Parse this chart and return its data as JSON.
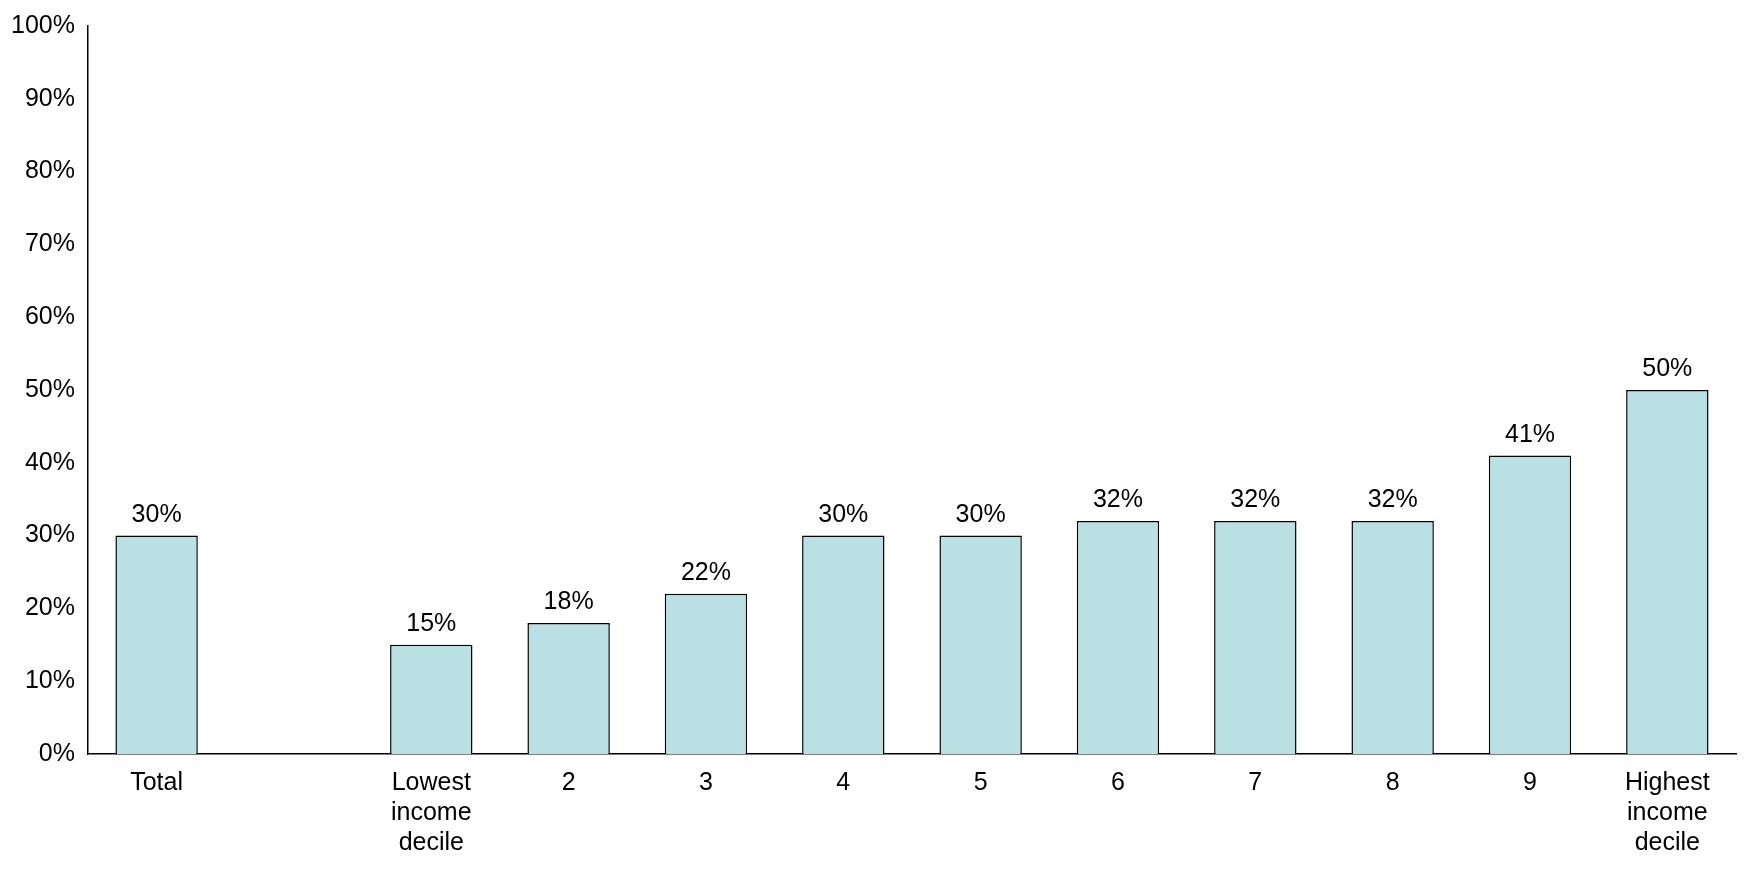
{
  "chart_data": {
    "type": "bar",
    "categories": [
      "Total",
      null,
      "Lowest income decile",
      "2",
      "3",
      "4",
      "5",
      "6",
      "7",
      "8",
      "9",
      "Highest income decile"
    ],
    "values": [
      30,
      null,
      15,
      18,
      22,
      30,
      30,
      32,
      32,
      32,
      41,
      50
    ],
    "value_labels": [
      "30%",
      null,
      "15%",
      "18%",
      "22%",
      "30%",
      "30%",
      "32%",
      "32%",
      "32%",
      "41%",
      "50%"
    ],
    "color": "#b9e0e2",
    "ylim": [
      0,
      100
    ],
    "yticks": [
      {
        "value": 0,
        "label": "0%"
      },
      {
        "value": 10,
        "label": "10%"
      },
      {
        "value": 20,
        "label": "20%"
      },
      {
        "value": 30,
        "label": "30%"
      },
      {
        "value": 40,
        "label": "40%"
      },
      {
        "value": 50,
        "label": "50%"
      },
      {
        "value": 60,
        "label": "60%"
      },
      {
        "value": 70,
        "label": "70%"
      },
      {
        "value": 80,
        "label": "80%"
      },
      {
        "value": 90,
        "label": "90%"
      },
      {
        "value": 100,
        "label": "100%"
      }
    ],
    "grid": false,
    "legend": false
  }
}
